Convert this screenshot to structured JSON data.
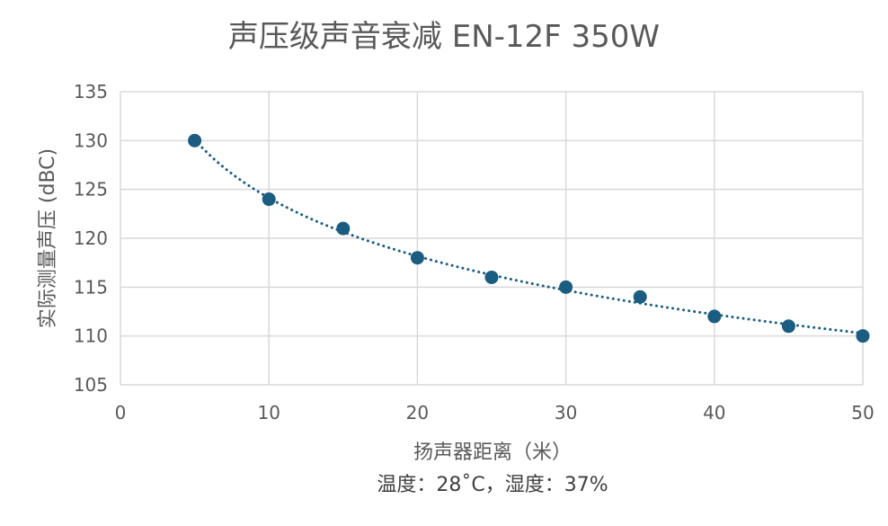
{
  "chart_data": {
    "type": "scatter",
    "title": "声压级声音衰减 EN-12F 350W",
    "xlabel": "扬声器距离（米）",
    "ylabel": "实际测量声压 (dBC)",
    "subtitle_note": "温度：28˚C，湿度：37%",
    "xlim": [
      0,
      50
    ],
    "ylim": [
      105,
      135
    ],
    "x_ticks": [
      0,
      10,
      20,
      30,
      40,
      50
    ],
    "y_ticks": [
      105,
      110,
      115,
      120,
      125,
      130,
      135
    ],
    "grid": true,
    "trendline": "logarithmic, dotted",
    "series": [
      {
        "x": [
          5,
          10,
          15,
          20,
          25,
          30,
          35,
          40,
          45,
          50
        ],
        "y": [
          130,
          124,
          121,
          118,
          116,
          115,
          114,
          112,
          111,
          110
        ]
      }
    ],
    "colors": {
      "marker": "#1a5d80",
      "trendline": "#1a5d80"
    }
  }
}
